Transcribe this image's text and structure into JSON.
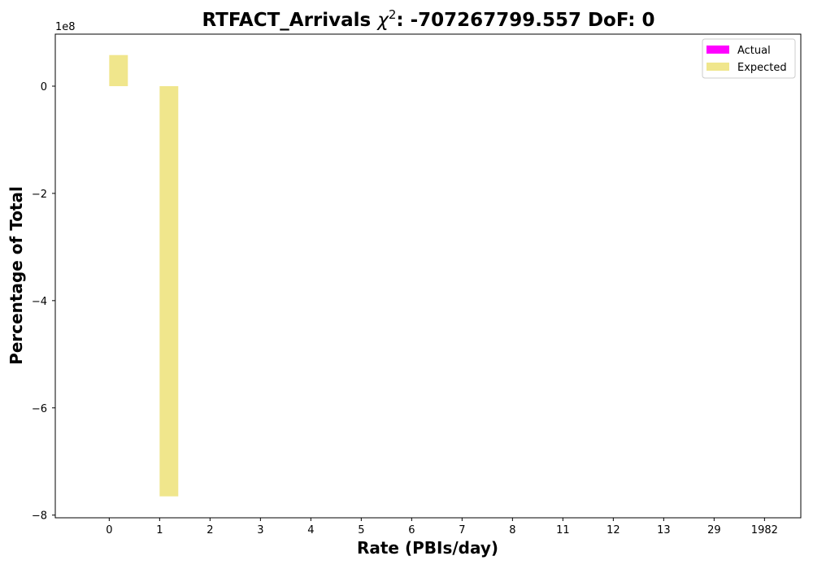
{
  "chart_data": {
    "type": "bar",
    "title_main": "RTFACT_Arrivals ",
    "title_chi": "χ",
    "title_sup": "2",
    "title_rest": ": -707267799.557 DoF: 0",
    "xlabel": "Rate (PBIs/day)",
    "ylabel": "Percentage of Total",
    "y_offset_label": "1e8",
    "categories": [
      "0",
      "1",
      "2",
      "3",
      "4",
      "5",
      "6",
      "7",
      "8",
      "11",
      "12",
      "13",
      "29",
      "1982"
    ],
    "ylim": [
      -8.05,
      0.97
    ],
    "yticks": [
      0,
      -2,
      -4,
      -6,
      -8
    ],
    "ytick_labels": [
      "0",
      "−2",
      "−4",
      "−6",
      "−8"
    ],
    "grid": false,
    "legend_position": "top-right",
    "series": [
      {
        "name": "Actual",
        "color": "#ff00ff",
        "values": [
          0,
          0,
          0,
          0,
          0,
          0,
          0,
          0,
          0,
          0,
          0,
          0,
          0,
          0
        ]
      },
      {
        "name": "Expected",
        "color": "#f0e68c",
        "values": [
          0.58,
          -7.65,
          0,
          0,
          0,
          0,
          0,
          0,
          0,
          0,
          0,
          0,
          0,
          0
        ]
      }
    ]
  }
}
